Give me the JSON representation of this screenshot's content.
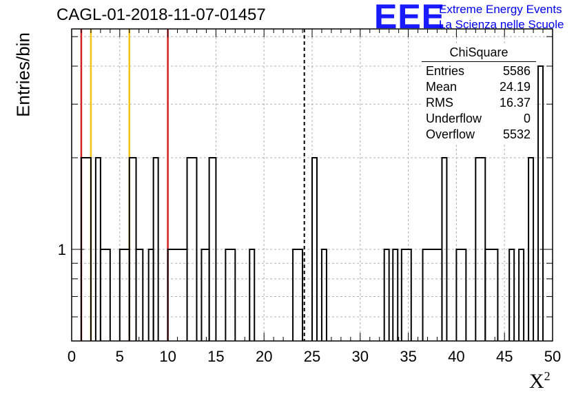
{
  "title": "CAGL-01-2018-11-07-01457",
  "logo": {
    "mark": "EEE",
    "line1": "Extreme Energy Events",
    "line2": "La Scienza nelle Scuole",
    "color": "#1a1aff"
  },
  "stats_box": {
    "title": "ChiSquare",
    "rows": [
      {
        "label": "Entries",
        "value": "5586"
      },
      {
        "label": "Mean",
        "value": "24.19"
      },
      {
        "label": "RMS",
        "value": "16.37"
      },
      {
        "label": "Underflow",
        "value": "0"
      },
      {
        "label": "Overflow",
        "value": "5532"
      }
    ]
  },
  "chart_data": {
    "type": "histogram",
    "title": "CAGL-01-2018-11-07-01457",
    "xlabel": "X",
    "xlabel_sup": "2",
    "ylabel": "Entries/bin",
    "xlim": [
      0,
      50
    ],
    "ylim": [
      0.5,
      5.3
    ],
    "yscale": "log",
    "grid": true,
    "bin_width": 1,
    "xticks": [
      0,
      5,
      10,
      15,
      20,
      25,
      30,
      35,
      40,
      45,
      50
    ],
    "ytick_labels": [
      {
        "value": 1,
        "label": "1"
      }
    ],
    "bins": [
      {
        "x0": 1,
        "x1": 2,
        "v": 2
      },
      {
        "x0": 2.5,
        "x1": 3,
        "v": 2
      },
      {
        "x0": 3,
        "x1": 4,
        "v": 1
      },
      {
        "x0": 5,
        "x1": 6,
        "v": 1
      },
      {
        "x0": 6,
        "x1": 6.7,
        "v": 2
      },
      {
        "x0": 6.7,
        "x1": 7.4,
        "v": 1
      },
      {
        "x0": 8,
        "x1": 8.5,
        "v": 1
      },
      {
        "x0": 8.5,
        "x1": 9,
        "v": 2
      },
      {
        "x0": 10,
        "x1": 12,
        "v": 1
      },
      {
        "x0": 12,
        "x1": 13,
        "v": 2
      },
      {
        "x0": 13.5,
        "x1": 14.3,
        "v": 1
      },
      {
        "x0": 14.3,
        "x1": 15,
        "v": 2
      },
      {
        "x0": 16,
        "x1": 17,
        "v": 1
      },
      {
        "x0": 18.5,
        "x1": 19,
        "v": 1
      },
      {
        "x0": 23,
        "x1": 24,
        "v": 1
      },
      {
        "x0": 25,
        "x1": 25.5,
        "v": 2
      },
      {
        "x0": 26,
        "x1": 26.5,
        "v": 1
      },
      {
        "x0": 32.5,
        "x1": 33,
        "v": 1
      },
      {
        "x0": 33.4,
        "x1": 33.9,
        "v": 1
      },
      {
        "x0": 34.3,
        "x1": 35.3,
        "v": 1
      },
      {
        "x0": 36.5,
        "x1": 38.5,
        "v": 1
      },
      {
        "x0": 38.5,
        "x1": 39,
        "v": 2
      },
      {
        "x0": 40,
        "x1": 41,
        "v": 1
      },
      {
        "x0": 42,
        "x1": 43,
        "v": 2
      },
      {
        "x0": 43,
        "x1": 44.3,
        "v": 1
      },
      {
        "x0": 45.5,
        "x1": 46,
        "v": 1
      },
      {
        "x0": 46.5,
        "x1": 47,
        "v": 1
      },
      {
        "x0": 47.5,
        "x1": 48,
        "v": 2
      },
      {
        "x0": 48.5,
        "x1": 49,
        "v": 4
      }
    ],
    "reference_lines": [
      {
        "x": 1,
        "color": "#d42020"
      },
      {
        "x": 2,
        "color": "#f2c21a"
      },
      {
        "x": 6,
        "color": "#f2c21a"
      },
      {
        "x": 10,
        "color": "#d42020"
      },
      {
        "x": 24.19,
        "color": "#000000",
        "dashed": true
      }
    ]
  }
}
